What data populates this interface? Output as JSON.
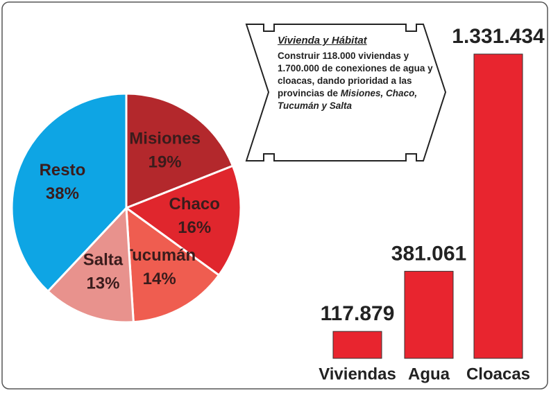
{
  "chart_data": [
    {
      "type": "pie",
      "categories": [
        "Misiones",
        "Chaco",
        "Tucumán",
        "Salta",
        "Resto"
      ],
      "values": [
        19,
        16,
        14,
        13,
        38
      ],
      "value_labels": [
        "19%",
        "16%",
        "14%",
        "13%",
        "38%"
      ],
      "colors": [
        "#b3282c",
        "#e0262d",
        "#ef5d50",
        "#e8928d",
        "#0ea5e4"
      ]
    },
    {
      "type": "bar",
      "categories": [
        "Viviendas",
        "Agua",
        "Cloacas"
      ],
      "values": [
        117879,
        381061,
        1331434
      ],
      "value_labels": [
        "117.879",
        "381.061",
        "1.331.434"
      ],
      "color": "#e8252f",
      "annotation": {
        "title": "Vivienda y Hábitat",
        "text": "Construir 118.000 viviendas y 1.700.000 de conexiones de agua y cloacas, dando prioridad a las provincias de ",
        "text_italic": "Misiones, Chaco, Tucumán y Salta"
      }
    }
  ]
}
